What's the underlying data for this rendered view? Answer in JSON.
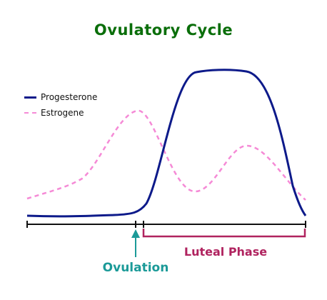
{
  "title": "Ovulatory Cycle",
  "legend": {
    "progesterone": "Progesterone",
    "estrogene": "Estrogene"
  },
  "labels": {
    "ovulation": "Ovulation",
    "luteal_phase": "Luteal Phase"
  },
  "colors": {
    "title": "#0a6e0a",
    "progesterone": "#0d1a8a",
    "estrogene": "#f58ad6",
    "ovulation": "#1b9a98",
    "luteal_phase": "#b0235f",
    "axis": "#111111"
  }
}
